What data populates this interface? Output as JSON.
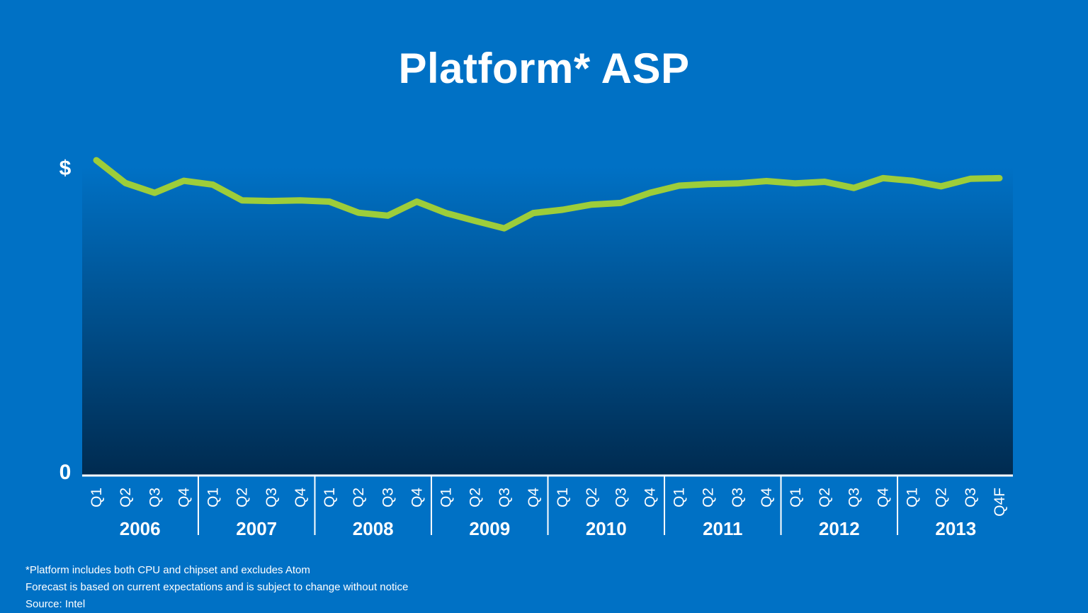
{
  "colors": {
    "background": "#0071c5",
    "line": "#9dcd3a",
    "gradient_top": "#0071c5",
    "gradient_bottom": "#002b50",
    "text": "#ffffff"
  },
  "chart_data": {
    "type": "area",
    "title": "Platform* ASP",
    "y_tick_labels": [
      "$",
      "0"
    ],
    "ylim": [
      0,
      100
    ],
    "grid": false,
    "legend": "none",
    "quarter_labels": [
      "Q1",
      "Q2",
      "Q3",
      "Q4",
      "Q1",
      "Q2",
      "Q3",
      "Q4",
      "Q1",
      "Q2",
      "Q3",
      "Q4",
      "Q1",
      "Q2",
      "Q3",
      "Q4",
      "Q1",
      "Q2",
      "Q3",
      "Q4",
      "Q1",
      "Q2",
      "Q3",
      "Q4",
      "Q1",
      "Q2",
      "Q3",
      "Q4",
      "Q1",
      "Q2",
      "Q3",
      "Q4F"
    ],
    "years": [
      "2006",
      "2007",
      "2008",
      "2009",
      "2010",
      "2011",
      "2012",
      "2013"
    ],
    "series": [
      {
        "values": [
          96.5,
          89.5,
          86.5,
          90.2,
          89.0,
          84.2,
          84.0,
          84.2,
          83.8,
          80.4,
          79.5,
          83.8,
          80.3,
          77.9,
          75.6,
          80.3,
          81.3,
          82.9,
          83.4,
          86.5,
          88.7,
          89.2,
          89.4,
          90.1,
          89.4,
          89.9,
          88.0,
          91.0,
          90.2,
          88.5,
          90.8,
          91.0
        ]
      }
    ]
  },
  "footnotes": {
    "line1": "*Platform includes both CPU and chipset and excludes Atom",
    "line2": "Forecast  is based on current expectations and is subject to change without notice",
    "line3": "Source: Intel"
  }
}
